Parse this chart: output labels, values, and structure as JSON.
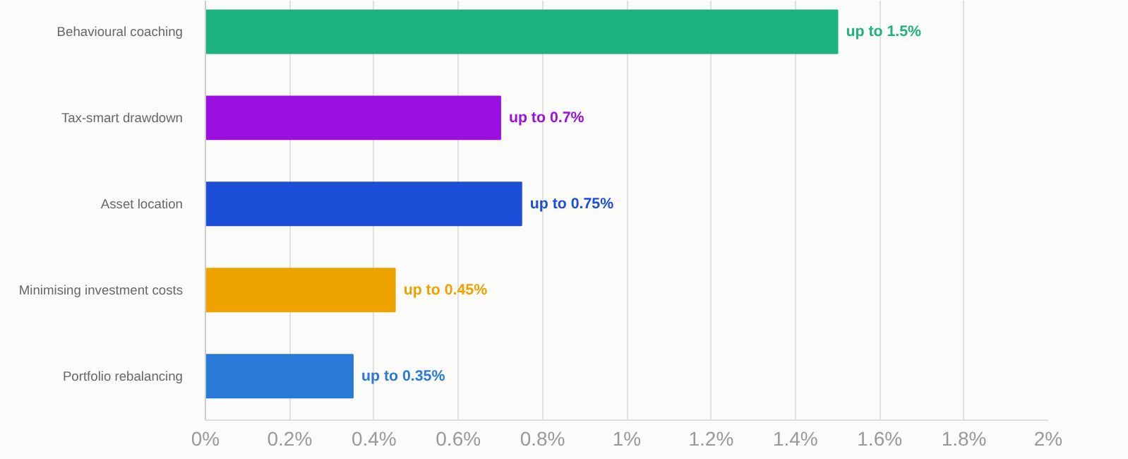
{
  "chart_data": {
    "type": "bar",
    "orientation": "horizontal",
    "categories": [
      "Behavioural coaching",
      "Tax-smart drawdown",
      "Asset location",
      "Minimising investment costs",
      "Portfolio rebalancing"
    ],
    "values": [
      1.5,
      0.7,
      0.75,
      0.45,
      0.35
    ],
    "colors": [
      "#1db27e",
      "#9b10e0",
      "#1d4ed8",
      "#eda200",
      "#2979d8"
    ],
    "value_labels": [
      "up to 1.5%",
      "up to 0.7%",
      "up to 0.75%",
      "up to 0.45%",
      "up to 0.35%"
    ],
    "xlim": [
      0,
      2
    ],
    "xticks": [
      {
        "value": 0,
        "label": "0%"
      },
      {
        "value": 0.2,
        "label": "0.2%"
      },
      {
        "value": 0.4,
        "label": "0.4%"
      },
      {
        "value": 0.6,
        "label": "0.6%"
      },
      {
        "value": 0.8,
        "label": "0.8%"
      },
      {
        "value": 1,
        "label": "1%"
      },
      {
        "value": 1.2,
        "label": "1.2%"
      },
      {
        "value": 1.4,
        "label": "1.4%"
      },
      {
        "value": 1.6,
        "label": "1.6%"
      },
      {
        "value": 1.8,
        "label": "1.8%"
      },
      {
        "value": 2,
        "label": "2%"
      }
    ],
    "grid": "x"
  }
}
